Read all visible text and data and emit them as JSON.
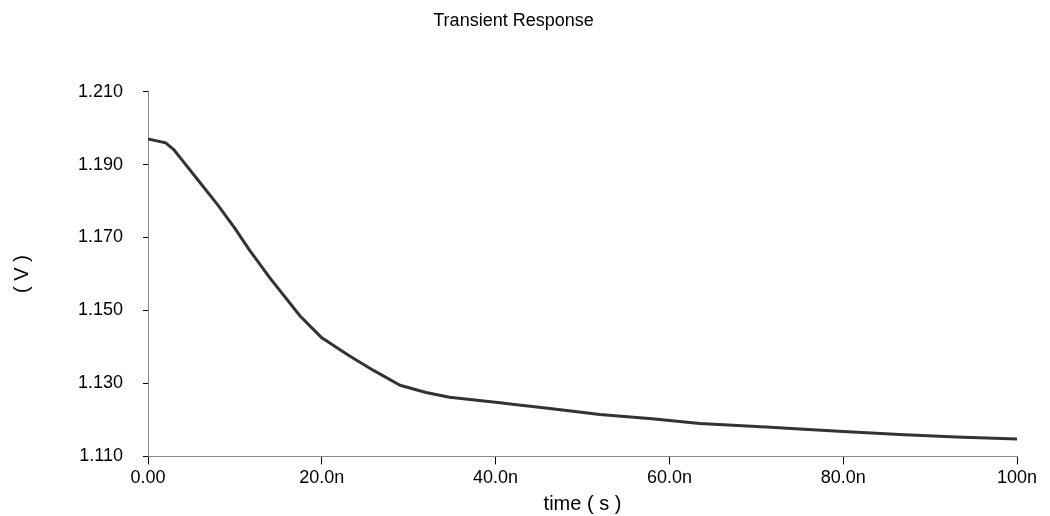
{
  "chart_data": {
    "type": "line",
    "title": "Transient Response",
    "xlabel": "time ( s )",
    "ylabel": "( V )",
    "x": [
      0,
      1,
      2,
      3,
      4,
      6,
      8,
      10,
      11.7,
      14,
      17.5,
      20,
      23.2,
      26,
      29,
      32,
      34.7,
      40.5,
      46,
      52,
      58,
      63.5,
      70,
      75,
      80,
      86.5,
      93,
      100
    ],
    "series": [
      {
        "color": "#333333",
        "values": [
          1.197,
          1.1965,
          1.196,
          1.194,
          1.191,
          1.185,
          1.179,
          1.1725,
          1.1665,
          1.159,
          1.1485,
          1.1425,
          1.1375,
          1.1335,
          1.1295,
          1.1275,
          1.1262,
          1.1247,
          1.1232,
          1.1215,
          1.1203,
          1.119,
          1.1182,
          1.1175,
          1.1168,
          1.116,
          1.1153,
          1.1148
        ]
      }
    ],
    "xlim": [
      0,
      100
    ],
    "xticks": [
      {
        "value": 0,
        "label": "0.00"
      },
      {
        "value": 20,
        "label": "20.0n"
      },
      {
        "value": 40,
        "label": "40.0n"
      },
      {
        "value": 60,
        "label": "60.0n"
      },
      {
        "value": 80,
        "label": "80.0n"
      },
      {
        "value": 100,
        "label": "100n"
      }
    ],
    "ylim": [
      1.11,
      1.21
    ],
    "yticks": [
      {
        "value": 1.11,
        "label": "1.110"
      },
      {
        "value": 1.13,
        "label": "1.130"
      },
      {
        "value": 1.15,
        "label": "1.150"
      },
      {
        "value": 1.17,
        "label": "1.170"
      },
      {
        "value": 1.19,
        "label": "1.190"
      },
      {
        "value": 1.21,
        "label": "1.210"
      }
    ],
    "grid": false,
    "legend": false,
    "marker": "none",
    "line_style": "solid"
  }
}
